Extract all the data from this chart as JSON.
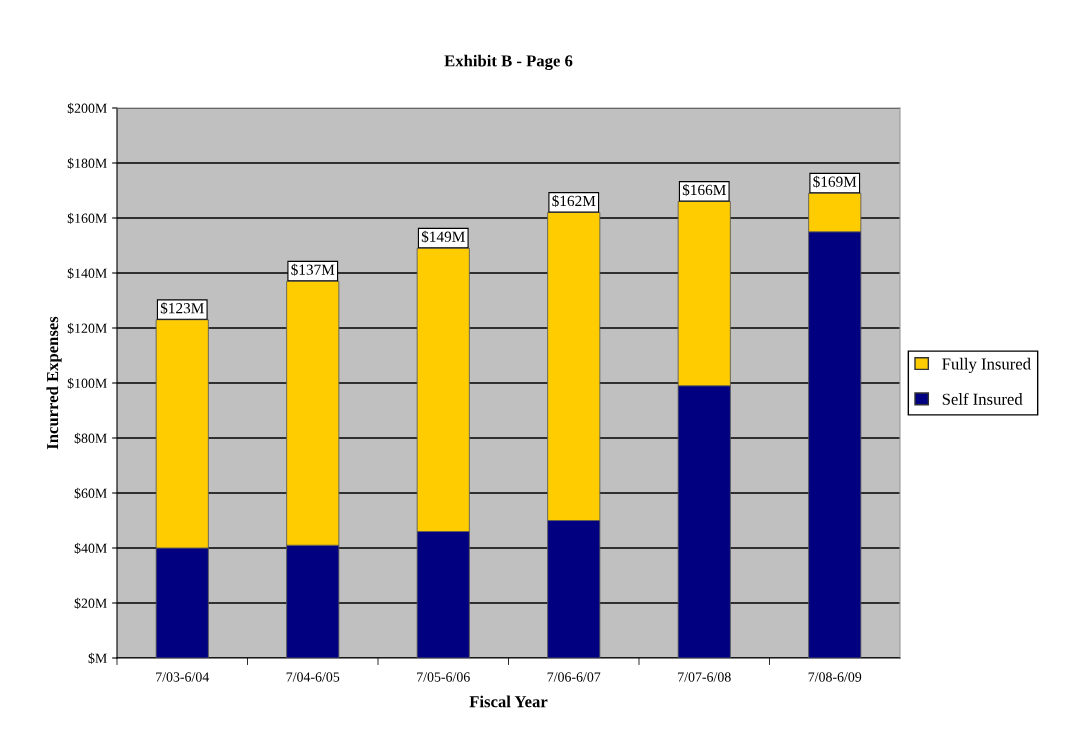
{
  "chart_data": {
    "type": "bar",
    "title": "Exhibit B - Page 6",
    "xlabel": "Fiscal Year",
    "ylabel": "Incurred Expenses",
    "categories": [
      "7/03-6/04",
      "7/04-6/05",
      "7/05-6/06",
      "7/06-6/07",
      "7/07-6/08",
      "7/08-6/09"
    ],
    "stacked": true,
    "series": [
      {
        "name": "Self Insured",
        "color": "#000080",
        "values": [
          40,
          41,
          46,
          50,
          99,
          155
        ]
      },
      {
        "name": "Fully Insured",
        "color": "#ffcc00",
        "values": [
          83,
          96,
          103,
          112,
          67,
          14
        ]
      }
    ],
    "totals": [
      "$123M",
      "$137M",
      "$149M",
      "$162M",
      "$166M",
      "$169M"
    ],
    "ylim": [
      0,
      200
    ],
    "yticks": [
      {
        "value": 0,
        "label": "$M"
      },
      {
        "value": 20,
        "label": "$20M"
      },
      {
        "value": 40,
        "label": "$40M"
      },
      {
        "value": 60,
        "label": "$60M"
      },
      {
        "value": 80,
        "label": "$80M"
      },
      {
        "value": 100,
        "label": "$100M"
      },
      {
        "value": 120,
        "label": "$120M"
      },
      {
        "value": 140,
        "label": "$140M"
      },
      {
        "value": 160,
        "label": "$160M"
      },
      {
        "value": 180,
        "label": "$180M"
      },
      {
        "value": 200,
        "label": "$200M"
      }
    ],
    "grid": "y",
    "legend": "right"
  }
}
